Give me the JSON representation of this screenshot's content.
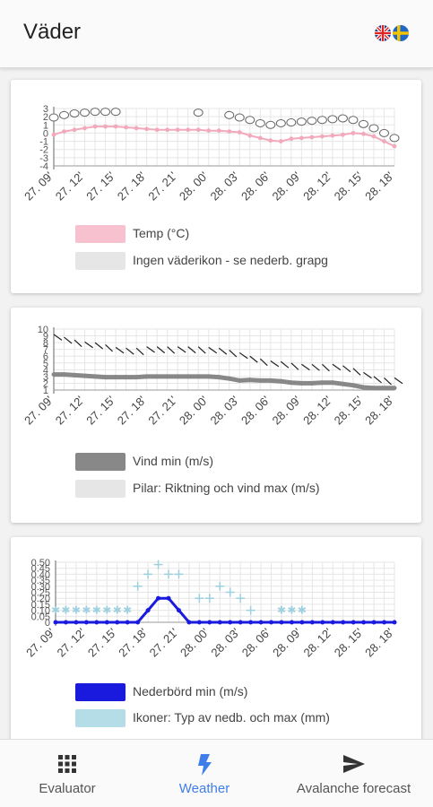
{
  "app": {
    "title": "Väder"
  },
  "languages": [
    {
      "name": "english-flag-icon",
      "code": "en"
    },
    {
      "name": "swedish-flag-icon",
      "code": "sv"
    }
  ],
  "x_ticks": [
    "27. 09'",
    "27. 12'",
    "27. 15'",
    "27. 18'",
    "27. 21'",
    "28. 00'",
    "28. 03'",
    "28. 06'",
    "28. 09'",
    "28. 12'",
    "28. 15'",
    "28. 18'"
  ],
  "charts": {
    "temp": {
      "yticks": [
        "3",
        "2",
        "1",
        "0",
        "-1",
        "-2",
        "-3",
        "-4"
      ],
      "legend": [
        {
          "label": "Temp (°C)",
          "color": "#f7c1cf"
        },
        {
          "label": "Ingen väderikon - se nederb. grapg",
          "color": "#e6e6e6"
        }
      ]
    },
    "wind": {
      "yticks": [
        "10",
        "9",
        "8",
        "7",
        "6",
        "5",
        "4",
        "3",
        "2",
        "1"
      ],
      "legend": [
        {
          "label": "Vind min (m/s)",
          "color": "#888888"
        },
        {
          "label": "Pilar: Riktning och vind max (m/s)",
          "color": "#e6e6e6"
        }
      ]
    },
    "precip": {
      "yticks": [
        "0.50",
        "0.45",
        "0.40",
        "0.35",
        "0.30",
        "0.25",
        "0.20",
        "0.15",
        "0.10",
        "0.05",
        "0"
      ],
      "legend": [
        {
          "label": "Nederbörd min (m/s)",
          "color": "#1a1adf"
        },
        {
          "label": "Ikoner: Typ av nedb. och max (mm)",
          "color": "#b5dde8"
        }
      ]
    }
  },
  "chart_data": [
    {
      "type": "line",
      "x": [
        0,
        1,
        2,
        3,
        4,
        5,
        6,
        7,
        8,
        9,
        10,
        11,
        12,
        13,
        14,
        15,
        16,
        17,
        18,
        19,
        20,
        21,
        22,
        23,
        24,
        25,
        26,
        27,
        28,
        29,
        30,
        31,
        32,
        33
      ],
      "series": [
        {
          "name": "Temp (°C)",
          "values": [
            -0.2,
            0.2,
            0.4,
            0.6,
            0.8,
            0.8,
            0.8,
            0.7,
            0.6,
            0.5,
            0.4,
            0.4,
            0.4,
            0.4,
            0.4,
            0.3,
            0.3,
            0.2,
            0.1,
            -0.3,
            -0.6,
            -0.9,
            -1.0,
            -0.7,
            -0.6,
            -0.5,
            -0.4,
            -0.3,
            -0.2,
            0.0,
            -0.1,
            -0.4,
            -1.0,
            -1.6
          ]
        },
        {
          "name": "Ingen väderikon - se nederb. grapg",
          "values": [
            1.9,
            2.2,
            2.4,
            2.5,
            2.6,
            2.6,
            2.6,
            null,
            null,
            null,
            null,
            null,
            null,
            null,
            2.5,
            null,
            null,
            2.2,
            1.9,
            1.6,
            1.2,
            1.0,
            1.2,
            1.3,
            1.4,
            1.5,
            1.6,
            1.7,
            1.8,
            1.6,
            1.1,
            0.6,
            0.0,
            -0.6
          ]
        }
      ],
      "ylim": [
        -4,
        3
      ]
    },
    {
      "type": "line",
      "x": [
        0,
        1,
        2,
        3,
        4,
        5,
        6,
        7,
        8,
        9,
        10,
        11,
        12,
        13,
        14,
        15,
        16,
        17,
        18,
        19,
        20,
        21,
        22,
        23,
        24,
        25,
        26,
        27,
        28,
        29,
        30,
        31,
        32,
        33
      ],
      "series": [
        {
          "name": "Vind min (m/s)",
          "values": [
            3.3,
            3.3,
            3.2,
            3.1,
            3.0,
            2.9,
            2.9,
            2.9,
            2.9,
            3.0,
            3.0,
            3.0,
            3.0,
            3.0,
            3.0,
            3.0,
            2.9,
            2.7,
            2.4,
            2.5,
            2.4,
            2.4,
            2.3,
            2.1,
            2.0,
            2.0,
            2.1,
            2.1,
            1.9,
            1.7,
            1.4,
            1.3,
            1.3,
            1.3
          ]
        },
        {
          "name": "Pilar: Riktning och vind max (m/s)",
          "values": [
            9.2,
            8.8,
            8.4,
            8.1,
            8.0,
            7.7,
            7.3,
            7.2,
            7.2,
            7.4,
            7.4,
            7.4,
            7.4,
            7.4,
            7.4,
            7.3,
            7.2,
            6.9,
            6.5,
            6.0,
            5.6,
            5.3,
            5.2,
            5.0,
            4.8,
            4.8,
            4.8,
            4.8,
            4.6,
            4.2,
            3.6,
            3.0,
            2.8,
            2.8
          ]
        }
      ],
      "ylim": [
        1,
        10
      ]
    },
    {
      "type": "line",
      "x": [
        0,
        1,
        2,
        3,
        4,
        5,
        6,
        7,
        8,
        9,
        10,
        11,
        12,
        13,
        14,
        15,
        16,
        17,
        18,
        19,
        20,
        21,
        22,
        23,
        24,
        25,
        26,
        27,
        28,
        29,
        30,
        31,
        32,
        33
      ],
      "series": [
        {
          "name": "Nederbörd min (m/s)",
          "values": [
            0,
            0,
            0,
            0,
            0,
            0,
            0,
            0,
            0,
            0.1,
            0.2,
            0.2,
            0.1,
            0,
            0,
            0,
            0,
            0,
            0,
            0,
            0,
            0,
            0,
            0,
            0,
            0,
            0,
            0,
            0,
            0,
            0,
            0,
            0,
            0
          ]
        },
        {
          "name": "Ikoner: Typ av nedb. och max (mm)",
          "values": [
            0.1,
            0.1,
            0.1,
            0.1,
            0.1,
            0.1,
            0.1,
            0.1,
            0.3,
            0.4,
            0.48,
            0.4,
            0.4,
            null,
            0.2,
            0.2,
            0.3,
            0.25,
            0.2,
            0.1,
            null,
            null,
            0.1,
            0.1,
            0.1,
            null,
            null,
            null,
            null,
            null,
            null,
            null,
            null,
            null
          ]
        }
      ],
      "ylim": [
        0,
        0.5
      ]
    }
  ],
  "nav": [
    {
      "label": "Evaluator",
      "icon": "grid-icon",
      "active": false
    },
    {
      "label": "Weather",
      "icon": "lightning-icon",
      "active": true
    },
    {
      "label": "Avalanche forecast",
      "icon": "send-icon",
      "active": false
    }
  ]
}
